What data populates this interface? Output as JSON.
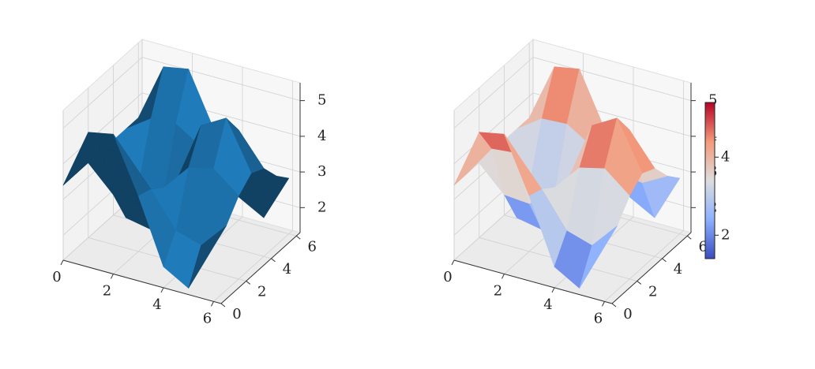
{
  "chart_data": [
    {
      "type": "surface",
      "color": "#1f77b4",
      "x": [
        0,
        1,
        2,
        3,
        4,
        5,
        6
      ],
      "y": [
        0,
        1,
        2,
        3,
        4,
        5,
        6
      ],
      "z": [
        [
          3.4,
          3.4,
          3.4,
          3.4,
          3.4,
          3.4,
          3.4
        ],
        [
          5.08,
          4.31,
          2.7,
          1.74,
          2.3,
          3.88,
          5.02
        ],
        [
          5.22,
          4.38,
          2.64,
          1.6,
          2.21,
          3.92,
          5.15
        ],
        [
          3.68,
          3.55,
          3.28,
          3.12,
          3.22,
          3.48,
          3.67
        ],
        [
          1.89,
          2.58,
          4.03,
          4.9,
          4.39,
          2.97,
          1.95
        ],
        [
          1.48,
          2.36,
          4.2,
          5.3,
          4.65,
          2.86,
          1.56
        ],
        [
          2.84,
          3.1,
          3.63,
          3.95,
          3.77,
          3.24,
          2.86
        ]
      ],
      "xlim": [
        0,
        6.3
      ],
      "ylim": [
        0,
        6.3
      ],
      "zlim": [
        1.3,
        5.5
      ],
      "xticks": [
        0,
        2,
        4,
        6
      ],
      "yticks": [
        0,
        2,
        4,
        6
      ],
      "zticks": [
        2,
        3,
        4,
        5
      ]
    },
    {
      "type": "surface",
      "colormap": "coolwarm",
      "x": [
        0,
        1,
        2,
        3,
        4,
        5,
        6
      ],
      "y": [
        0,
        1,
        2,
        3,
        4,
        5,
        6
      ],
      "z": [
        [
          3.4,
          3.4,
          3.4,
          3.4,
          3.4,
          3.4,
          3.4
        ],
        [
          5.08,
          4.31,
          2.7,
          1.74,
          2.3,
          3.88,
          5.02
        ],
        [
          5.22,
          4.38,
          2.64,
          1.6,
          2.21,
          3.92,
          5.15
        ],
        [
          3.68,
          3.55,
          3.28,
          3.12,
          3.22,
          3.48,
          3.67
        ],
        [
          1.89,
          2.58,
          4.03,
          4.9,
          4.39,
          2.97,
          1.95
        ],
        [
          1.48,
          2.36,
          4.2,
          5.3,
          4.65,
          2.86,
          1.56
        ],
        [
          2.84,
          3.1,
          3.63,
          3.95,
          3.77,
          3.24,
          2.86
        ]
      ],
      "xlim": [
        0,
        6.3
      ],
      "ylim": [
        0,
        6.3
      ],
      "zlim": [
        1.3,
        5.5
      ],
      "xticks": [
        0,
        2,
        4,
        6
      ],
      "yticks": [
        0,
        2,
        4,
        6
      ],
      "zticks": [
        2,
        3,
        4,
        5
      ],
      "clim": [
        1.4,
        5.4
      ],
      "colorbar_ticks": [
        2,
        4
      ]
    }
  ]
}
